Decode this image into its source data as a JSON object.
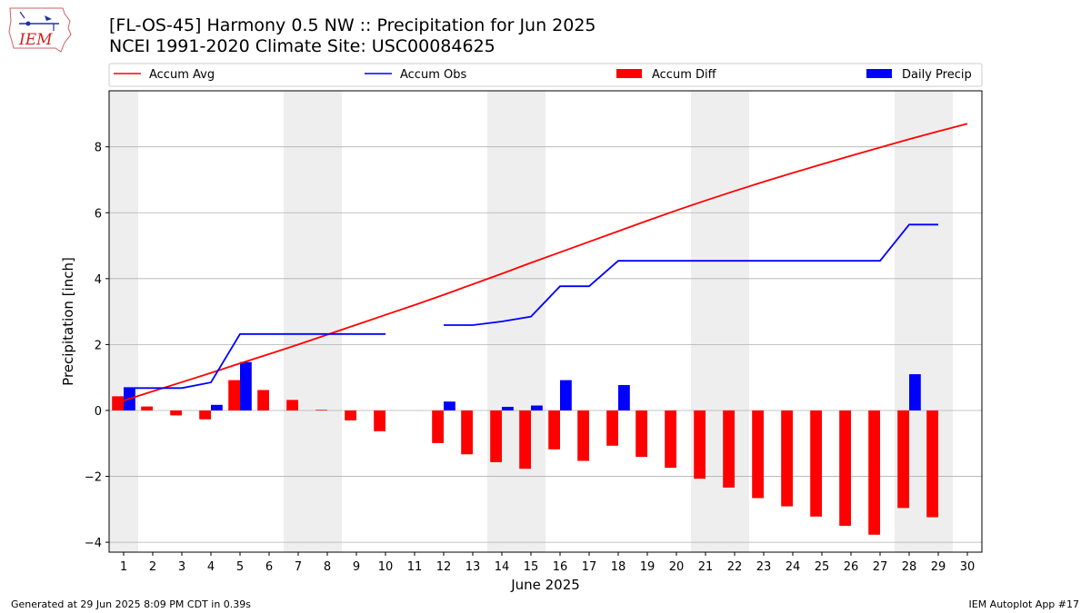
{
  "header": {
    "title_line1": "[FL-OS-45] Harmony 0.5 NW :: Precipitation for Jun 2025",
    "title_line2": "NCEI 1991-2020 Climate Site: USC00084625",
    "logo_text": "IEM"
  },
  "footer": {
    "left": "Generated at 29 Jun 2025 8:09 PM CDT in 0.39s",
    "right": "IEM Autoplot App #17"
  },
  "colors": {
    "accum_avg": "#ff0000",
    "accum_obs": "#0000ff",
    "accum_diff": "#ff0000",
    "daily_precip": "#0000ff",
    "weekend_shade": "#eeeeee",
    "grid": "#b0b0b0"
  },
  "chart_data": {
    "type": "bar",
    "xlabel": "June 2025",
    "ylabel": "Precipitation [inch]",
    "xlim": [
      0.5,
      30.5
    ],
    "ylim": [
      -4.3,
      9.7
    ],
    "yticks": [
      -4,
      -2,
      0,
      2,
      4,
      6,
      8
    ],
    "grid": "horizontal",
    "legend_position": "top",
    "legend": [
      "Accum Avg",
      "Accum Obs",
      "Accum Diff",
      "Daily Precip"
    ],
    "days": [
      1,
      2,
      3,
      4,
      5,
      6,
      7,
      8,
      9,
      10,
      11,
      12,
      13,
      14,
      15,
      16,
      17,
      18,
      19,
      20,
      21,
      22,
      23,
      24,
      25,
      26,
      27,
      28,
      29,
      30
    ],
    "weekend_days": [
      1,
      7,
      8,
      14,
      15,
      21,
      22,
      28,
      29
    ],
    "accum_avg": [
      0.3,
      0.58,
      0.86,
      1.14,
      1.43,
      1.71,
      2.0,
      2.3,
      2.6,
      2.9,
      3.2,
      3.51,
      3.83,
      4.15,
      4.48,
      4.8,
      5.12,
      5.44,
      5.76,
      6.07,
      6.37,
      6.66,
      6.94,
      7.21,
      7.47,
      7.73,
      7.98,
      8.23,
      8.47,
      8.7
    ],
    "accum_obs": [
      0.68,
      0.68,
      0.68,
      0.85,
      2.32,
      2.32,
      2.32,
      2.32,
      2.32,
      2.32,
      null,
      2.59,
      2.59,
      2.7,
      2.85,
      3.77,
      3.77,
      4.54,
      4.54,
      4.54,
      4.54,
      4.54,
      4.54,
      4.54,
      4.54,
      4.54,
      4.54,
      5.64,
      5.64,
      null
    ],
    "accum_diff": [
      0.43,
      0.12,
      -0.15,
      -0.27,
      0.92,
      0.62,
      0.32,
      0.02,
      -0.3,
      -0.63,
      null,
      -0.99,
      -1.33,
      -1.57,
      -1.77,
      -1.18,
      -1.53,
      -1.07,
      -1.41,
      -1.74,
      -2.07,
      -2.34,
      -2.66,
      -2.91,
      -3.22,
      -3.5,
      -3.77,
      -2.96,
      -3.24,
      null
    ],
    "daily_precip": [
      0.68,
      0.0,
      0.0,
      0.17,
      1.47,
      0.0,
      0.0,
      0.0,
      0.0,
      0.0,
      null,
      0.27,
      0.0,
      0.11,
      0.15,
      0.92,
      0.0,
      0.77,
      0.0,
      0.0,
      0.0,
      0.0,
      0.0,
      0.0,
      0.0,
      0.0,
      0.0,
      1.1,
      0.0,
      null
    ]
  }
}
